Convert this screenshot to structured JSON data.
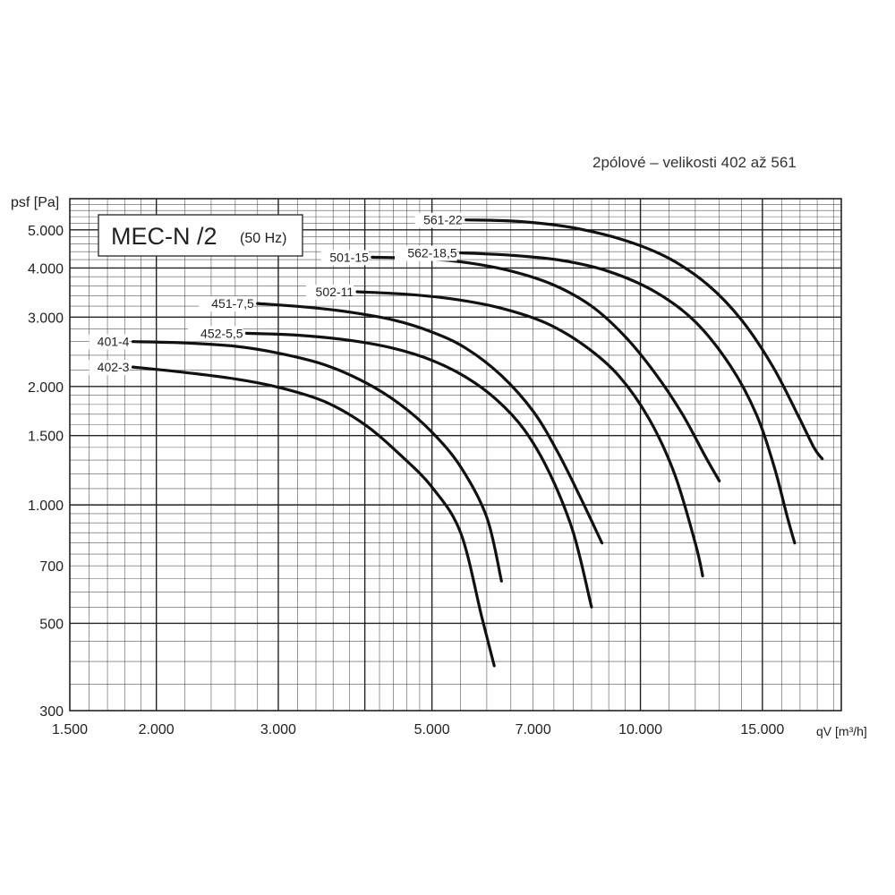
{
  "subtitle": "2pólové – velikosti 402 až 561",
  "chart_data": {
    "type": "line",
    "title": "MEC-N /2",
    "title_suffix": "(50 Hz)",
    "xlabel": "qV [m³/h]",
    "ylabel": "psf [Pa]",
    "x_scale": "log",
    "y_scale": "log",
    "xlim": [
      1500,
      19500
    ],
    "ylim": [
      300,
      6000
    ],
    "x_ticks": [
      {
        "value": 1500,
        "label": "1.500"
      },
      {
        "value": 2000,
        "label": "2.000"
      },
      {
        "value": 3000,
        "label": "3.000"
      },
      {
        "value": 5000,
        "label": "5.000"
      },
      {
        "value": 7000,
        "label": "7.000"
      },
      {
        "value": 10000,
        "label": "10.000"
      },
      {
        "value": 15000,
        "label": "15.000"
      }
    ],
    "y_ticks": [
      {
        "value": 300,
        "label": "300"
      },
      {
        "value": 500,
        "label": "500"
      },
      {
        "value": 700,
        "label": "700"
      },
      {
        "value": 1000,
        "label": "1.000"
      },
      {
        "value": 1500,
        "label": "1.500"
      },
      {
        "value": 2000,
        "label": "2.000"
      },
      {
        "value": 3000,
        "label": "3.000"
      },
      {
        "value": 4000,
        "label": "4.000"
      },
      {
        "value": 5000,
        "label": "5.000"
      }
    ],
    "grid": true,
    "series": [
      {
        "name": "402-3",
        "points": [
          [
            1850,
            2240
          ],
          [
            2200,
            2170
          ],
          [
            2600,
            2090
          ],
          [
            3000,
            1990
          ],
          [
            3500,
            1830
          ],
          [
            4000,
            1600
          ],
          [
            4500,
            1340
          ],
          [
            5000,
            1110
          ],
          [
            5500,
            850
          ],
          [
            5900,
            520
          ],
          [
            6150,
            390
          ]
        ]
      },
      {
        "name": "401-4",
        "points": [
          [
            1850,
            2600
          ],
          [
            2200,
            2580
          ],
          [
            2600,
            2530
          ],
          [
            3000,
            2430
          ],
          [
            3500,
            2270
          ],
          [
            4000,
            2050
          ],
          [
            4500,
            1800
          ],
          [
            5000,
            1530
          ],
          [
            5500,
            1250
          ],
          [
            6000,
            930
          ],
          [
            6300,
            640
          ]
        ]
      },
      {
        "name": "452-5,5",
        "points": [
          [
            2700,
            2730
          ],
          [
            3200,
            2700
          ],
          [
            3800,
            2620
          ],
          [
            4400,
            2500
          ],
          [
            5000,
            2330
          ],
          [
            5600,
            2110
          ],
          [
            6200,
            1850
          ],
          [
            6800,
            1550
          ],
          [
            7400,
            1200
          ],
          [
            8000,
            850
          ],
          [
            8500,
            550
          ]
        ]
      },
      {
        "name": "451-7,5",
        "points": [
          [
            2800,
            3250
          ],
          [
            3300,
            3180
          ],
          [
            3800,
            3090
          ],
          [
            4400,
            2950
          ],
          [
            5000,
            2750
          ],
          [
            5600,
            2500
          ],
          [
            6300,
            2130
          ],
          [
            7000,
            1730
          ],
          [
            7600,
            1360
          ],
          [
            8200,
            1040
          ],
          [
            8800,
            800
          ]
        ]
      },
      {
        "name": "502-11",
        "points": [
          [
            3900,
            3480
          ],
          [
            4600,
            3430
          ],
          [
            5400,
            3330
          ],
          [
            6300,
            3160
          ],
          [
            7300,
            2900
          ],
          [
            8300,
            2540
          ],
          [
            9300,
            2130
          ],
          [
            10300,
            1650
          ],
          [
            11200,
            1200
          ],
          [
            12000,
            800
          ],
          [
            12300,
            660
          ]
        ]
      },
      {
        "name": "501-15",
        "points": [
          [
            4100,
            4260
          ],
          [
            4800,
            4230
          ],
          [
            5600,
            4130
          ],
          [
            6500,
            3930
          ],
          [
            7500,
            3620
          ],
          [
            8500,
            3200
          ],
          [
            9500,
            2680
          ],
          [
            10500,
            2160
          ],
          [
            11500,
            1700
          ],
          [
            12400,
            1330
          ],
          [
            13000,
            1150
          ]
        ]
      },
      {
        "name": "562-18,5",
        "points": [
          [
            5500,
            4370
          ],
          [
            6500,
            4310
          ],
          [
            7700,
            4180
          ],
          [
            9000,
            3920
          ],
          [
            10500,
            3480
          ],
          [
            12000,
            2920
          ],
          [
            13500,
            2250
          ],
          [
            14700,
            1700
          ],
          [
            15600,
            1250
          ],
          [
            16300,
            930
          ],
          [
            16700,
            800
          ]
        ]
      },
      {
        "name": "561-22",
        "points": [
          [
            5600,
            5300
          ],
          [
            6700,
            5250
          ],
          [
            8000,
            5060
          ],
          [
            9500,
            4700
          ],
          [
            11000,
            4230
          ],
          [
            12500,
            3630
          ],
          [
            14000,
            2950
          ],
          [
            15500,
            2260
          ],
          [
            16800,
            1720
          ],
          [
            17800,
            1400
          ],
          [
            18300,
            1310
          ]
        ]
      }
    ],
    "labels": [
      {
        "series": "402-3",
        "text": "402-3",
        "x": 1850,
        "y": 2240,
        "side": "left"
      },
      {
        "series": "401-4",
        "text": "401-4",
        "x": 1850,
        "y": 2600,
        "side": "left"
      },
      {
        "series": "452-5,5",
        "text": "452-5,5",
        "x": 2700,
        "y": 2730,
        "side": "left"
      },
      {
        "series": "451-7,5",
        "text": "451-7,5",
        "x": 2800,
        "y": 3250,
        "side": "left"
      },
      {
        "series": "502-11",
        "text": "502-11",
        "x": 3900,
        "y": 3480,
        "side": "left"
      },
      {
        "series": "501-15",
        "text": "501-15",
        "x": 4100,
        "y": 4260,
        "side": "left"
      },
      {
        "series": "562-18,5",
        "text": "562-18,5",
        "x": 5500,
        "y": 4370,
        "side": "left"
      },
      {
        "series": "561-22",
        "text": "561-22",
        "x": 5600,
        "y": 5300,
        "side": "left"
      }
    ],
    "line_color": "#111111"
  }
}
